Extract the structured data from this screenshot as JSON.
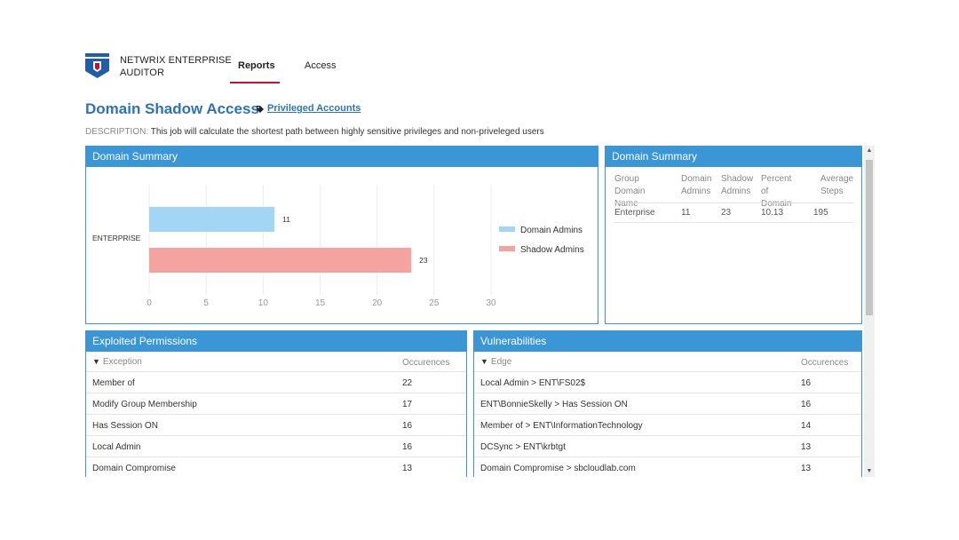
{
  "header": {
    "brand_line1": "NETWRIX ENTERPRISE",
    "brand_line2": "AUDITOR",
    "tabs": [
      {
        "label": "Reports"
      },
      {
        "label": "Access"
      }
    ]
  },
  "title": {
    "text": "Domain Shadow Access",
    "tag_label": "Privileged Accounts"
  },
  "description": {
    "label": "DESCRIPTION:",
    "text": "This job will calculate the shortest path between highly sensitive privileges and non-priveleged users"
  },
  "chart_panel": {
    "title": "Domain Summary"
  },
  "chart_data": {
    "type": "bar",
    "orientation": "horizontal",
    "categories": [
      "ENTERPRISE"
    ],
    "series": [
      {
        "name": "Domain Admins",
        "values": [
          11
        ],
        "color": "#a3d6f5"
      },
      {
        "name": "Shadow Admins",
        "values": [
          23
        ],
        "color": "#f4a3a0"
      }
    ],
    "xlim": [
      0,
      30
    ],
    "xticks": [
      "0",
      "5",
      "10",
      "15",
      "20",
      "25",
      "30"
    ],
    "grid": true,
    "legend": "right"
  },
  "summary_panel": {
    "title": "Domain Summary",
    "headers": [
      [
        "Group",
        "Domain Name"
      ],
      [
        "Domain",
        "Admins"
      ],
      [
        "Shadow",
        "Admins"
      ],
      [
        "Percent of",
        "Domain"
      ],
      [
        "Average",
        "Steps"
      ]
    ],
    "row": [
      "Enterprise",
      "11",
      "23",
      "10.13",
      "195"
    ]
  },
  "permissions_panel": {
    "title": "Exploited Permissions",
    "col1": "Exception",
    "col2": "Occurences",
    "rows": [
      {
        "name": "Member of",
        "count": "22"
      },
      {
        "name": "Modify Group Membership",
        "count": "17"
      },
      {
        "name": "Has Session ON",
        "count": "16"
      },
      {
        "name": "Local Admin",
        "count": "16"
      },
      {
        "name": "Domain Compromise",
        "count": "13"
      }
    ]
  },
  "vulnerabilities_panel": {
    "title": "Vulnerabilities",
    "col1": "Edge",
    "col2": "Occurences",
    "rows": [
      {
        "name": "Local Admin > ENT\\FS02$",
        "count": "16"
      },
      {
        "name": "ENT\\BonnieSkelly > Has Session ON",
        "count": "16"
      },
      {
        "name": "Member of > ENT\\InformationTechnology",
        "count": "14"
      },
      {
        "name": "DCSync > ENT\\krbtgt",
        "count": "13"
      },
      {
        "name": "Domain Compromise > sbcloudlab.com",
        "count": "13"
      }
    ]
  },
  "colors": {
    "accent": "#3a96d4",
    "title": "#2e74b5",
    "nav_active": "#c8102e"
  }
}
